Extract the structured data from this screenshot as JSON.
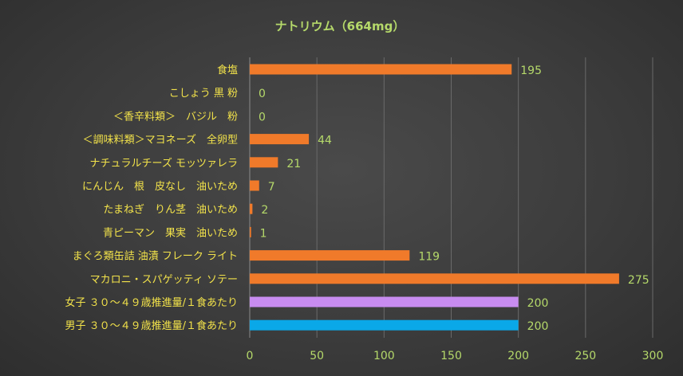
{
  "chart_data": {
    "type": "bar",
    "orientation": "horizontal",
    "title": "ナトリウム（664mg）",
    "categories": [
      "食塩",
      "こしょう 黒 粉",
      "＜香辛料類＞　バジル　粉",
      "＜調味料類＞マヨネーズ　全卵型",
      "ナチュラルチーズ モッツァレラ",
      "にんじん　根　皮なし　油いため",
      "たまねぎ　りん茎　油いため",
      "青ピーマン　果実　油いため",
      "まぐろ類缶詰 油漬 フレーク ライト",
      "マカロニ・スパゲッティ ソテー",
      "女子 ３０～４９歳推進量/１食あたり",
      "男子 ３０～４９歳推進量/１食あたり"
    ],
    "values": [
      195,
      0,
      0,
      44,
      21,
      7,
      2,
      1,
      119,
      275,
      200,
      200
    ],
    "value_labels": [
      "195",
      "0",
      "0",
      "44",
      "21",
      "7",
      "2",
      "1",
      "119",
      "275",
      "200",
      "200"
    ],
    "bar_colors": [
      "#f07a2a",
      "#f07a2a",
      "#f07a2a",
      "#f07a2a",
      "#f07a2a",
      "#f07a2a",
      "#f07a2a",
      "#f07a2a",
      "#f07a2a",
      "#f07a2a",
      "#c88cf0",
      "#0aa8e8"
    ],
    "xlim": [
      0,
      300
    ],
    "xticks": [
      0,
      50,
      100,
      150,
      200,
      250,
      300
    ],
    "xtick_labels": [
      "0",
      "50",
      "100",
      "150",
      "200",
      "250",
      "300"
    ],
    "grid": true,
    "legend": "none"
  }
}
